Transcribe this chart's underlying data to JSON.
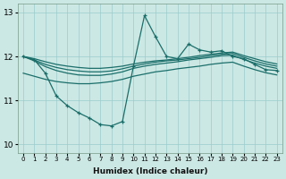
{
  "xlabel": "Humidex (Indice chaleur)",
  "bg_color": "#cce8e4",
  "grid_color": "#99cccc",
  "line_color": "#1a6e6a",
  "xlim": [
    -0.5,
    23.5
  ],
  "ylim": [
    9.8,
    13.2
  ],
  "xticks": [
    0,
    1,
    2,
    3,
    4,
    5,
    6,
    7,
    8,
    9,
    10,
    11,
    12,
    13,
    14,
    15,
    16,
    17,
    18,
    19,
    20,
    21,
    22,
    23
  ],
  "yticks": [
    10,
    11,
    12,
    13
  ],
  "spiky_x": [
    0,
    1,
    2,
    3,
    4,
    5,
    6,
    7,
    8,
    9,
    10,
    11,
    12,
    13,
    14,
    15,
    16,
    17,
    18,
    19,
    20,
    21,
    22,
    23
  ],
  "spiky_y": [
    12.0,
    11.93,
    11.62,
    11.1,
    10.88,
    10.72,
    10.6,
    10.45,
    10.42,
    10.52,
    11.78,
    12.93,
    12.45,
    12.0,
    11.95,
    12.28,
    12.15,
    12.1,
    12.13,
    12.0,
    11.95,
    11.82,
    11.7,
    11.68
  ],
  "band_upper_x": [
    0,
    1,
    2,
    3,
    4,
    5,
    6,
    7,
    8,
    9,
    10,
    11,
    12,
    13,
    14,
    15,
    16,
    17,
    18,
    19,
    20,
    21,
    22,
    23
  ],
  "band_upper_y": [
    12.0,
    11.95,
    11.88,
    11.82,
    11.78,
    11.75,
    11.73,
    11.73,
    11.75,
    11.78,
    11.83,
    11.87,
    11.9,
    11.92,
    11.95,
    11.98,
    12.02,
    12.05,
    12.08,
    12.1,
    12.02,
    11.95,
    11.88,
    11.83
  ],
  "band_mid_upper_x": [
    0,
    1,
    2,
    3,
    4,
    5,
    6,
    7,
    8,
    9,
    10,
    11,
    12,
    13,
    14,
    15,
    16,
    17,
    18,
    19,
    20,
    21,
    22,
    23
  ],
  "band_mid_upper_y": [
    12.0,
    11.92,
    11.82,
    11.75,
    11.7,
    11.67,
    11.65,
    11.65,
    11.67,
    11.72,
    11.78,
    11.83,
    11.87,
    11.9,
    11.92,
    11.95,
    11.98,
    12.02,
    12.05,
    12.07,
    11.98,
    11.9,
    11.83,
    11.78
  ],
  "band_mid_lower_x": [
    0,
    1,
    2,
    3,
    4,
    5,
    6,
    7,
    8,
    9,
    10,
    11,
    12,
    13,
    14,
    15,
    16,
    17,
    18,
    19,
    20,
    21,
    22,
    23
  ],
  "band_mid_lower_y": [
    12.0,
    11.9,
    11.77,
    11.68,
    11.62,
    11.58,
    11.57,
    11.57,
    11.6,
    11.65,
    11.73,
    11.78,
    11.82,
    11.85,
    11.88,
    11.92,
    11.95,
    11.98,
    12.02,
    12.03,
    11.93,
    11.85,
    11.78,
    11.73
  ],
  "band_lower_x": [
    0,
    1,
    2,
    3,
    4,
    5,
    6,
    7,
    8,
    9,
    10,
    11,
    12,
    13,
    14,
    15,
    16,
    17,
    18,
    19,
    20,
    21,
    22,
    23
  ],
  "band_lower_y": [
    11.62,
    11.55,
    11.48,
    11.43,
    11.4,
    11.38,
    11.38,
    11.4,
    11.43,
    11.48,
    11.55,
    11.6,
    11.65,
    11.68,
    11.72,
    11.75,
    11.78,
    11.82,
    11.85,
    11.87,
    11.78,
    11.7,
    11.63,
    11.58
  ]
}
